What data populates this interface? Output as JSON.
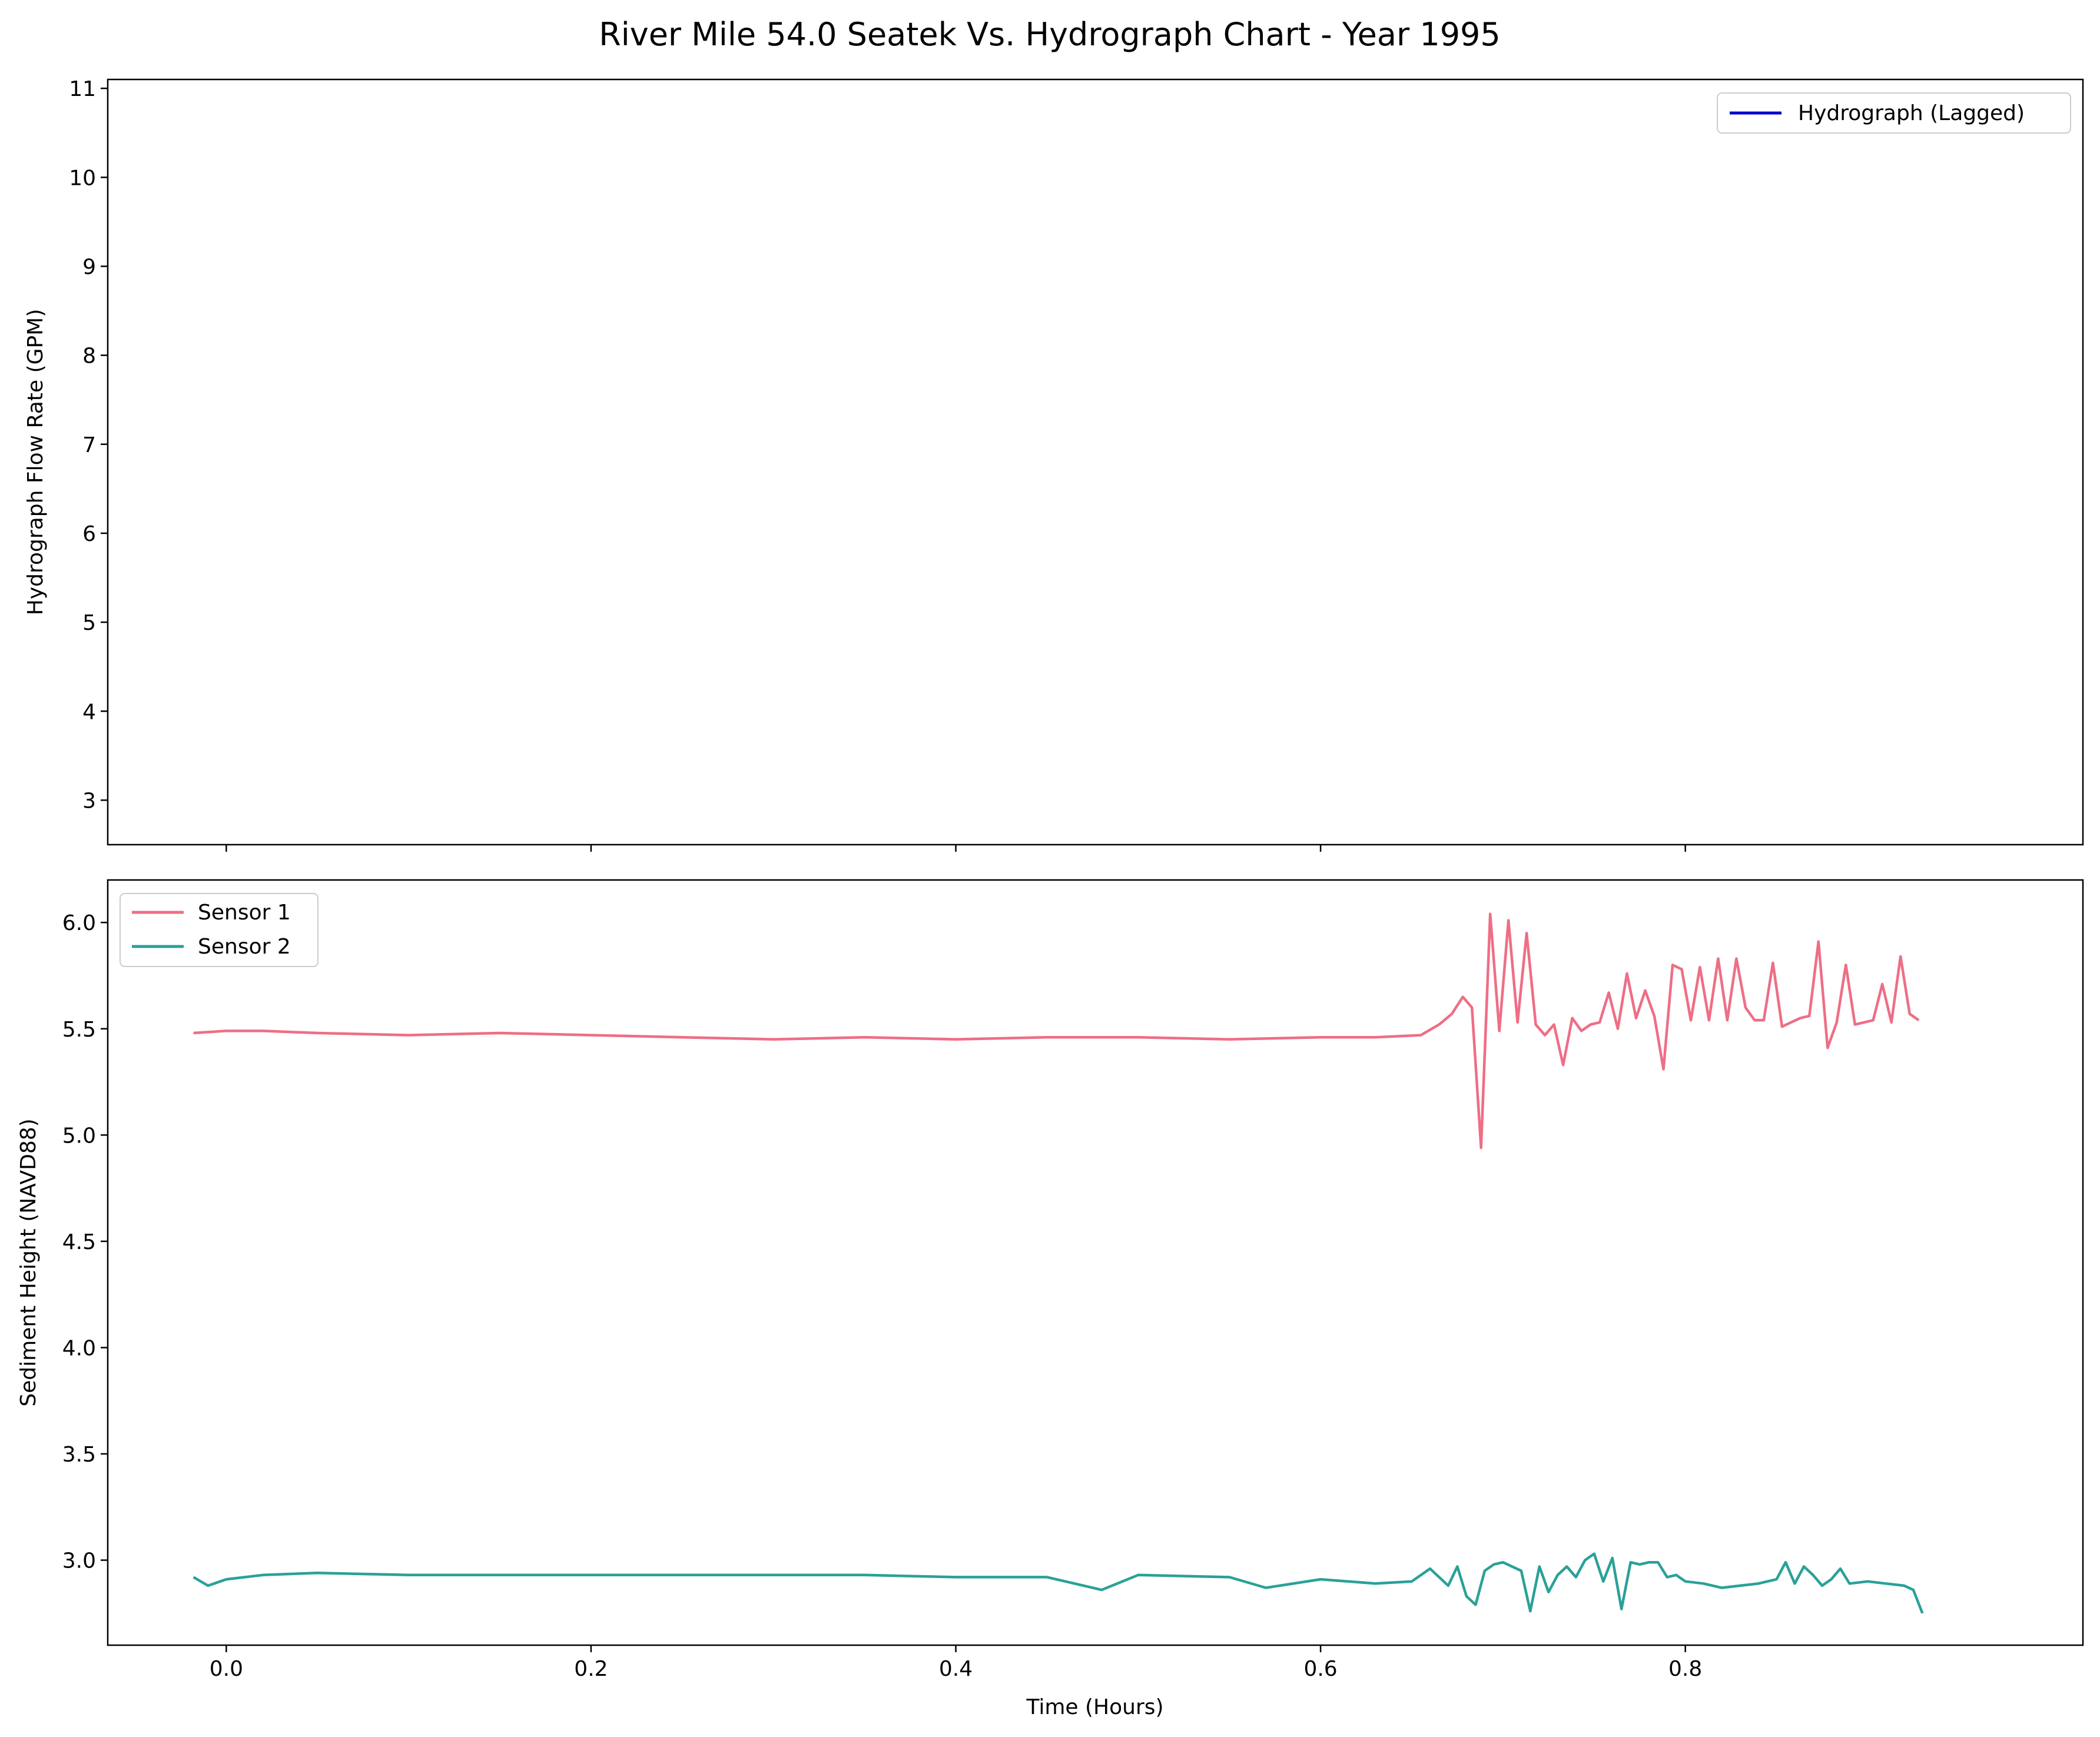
{
  "title": "River Mile 54.0 Seatek Vs. Hydrograph Chart - Year 1995",
  "chart_data": [
    {
      "type": "line",
      "panel": "top",
      "ylabel": "Hydrograph Flow Rate (GPM)",
      "xlabel": "",
      "ylim": [
        2.5,
        11.1
      ],
      "xlim": [
        -0.065,
        1.018
      ],
      "yticks": [
        3,
        4,
        5,
        6,
        7,
        8,
        9,
        10,
        11
      ],
      "xticks": [
        0.0,
        0.2,
        0.4,
        0.6,
        0.8
      ],
      "xtick_labels_visible": false,
      "grid": false,
      "legend_position": "top-right",
      "series": [
        {
          "name": "Hydrograph (Lagged)",
          "color": "#0000cc",
          "x": [],
          "y": []
        }
      ]
    },
    {
      "type": "line",
      "panel": "bottom",
      "xlabel": "Time (Hours)",
      "ylabel": "Sediment Height (NAVD88)",
      "ylim": [
        2.6,
        6.2
      ],
      "xlim": [
        -0.065,
        1.018
      ],
      "yticks": [
        3.0,
        3.5,
        4.0,
        4.5,
        5.0,
        5.5,
        6.0
      ],
      "xticks": [
        0.0,
        0.2,
        0.4,
        0.6,
        0.8
      ],
      "grid": false,
      "legend_position": "top-left",
      "series": [
        {
          "name": "Sensor 1",
          "color": "#ee6e85",
          "x": [
            -0.018,
            0.0,
            0.02,
            0.05,
            0.1,
            0.15,
            0.2,
            0.25,
            0.3,
            0.35,
            0.4,
            0.45,
            0.5,
            0.55,
            0.6,
            0.63,
            0.655,
            0.665,
            0.672,
            0.678,
            0.683,
            0.688,
            0.693,
            0.698,
            0.703,
            0.708,
            0.713,
            0.718,
            0.723,
            0.728,
            0.733,
            0.738,
            0.743,
            0.748,
            0.753,
            0.758,
            0.763,
            0.768,
            0.773,
            0.778,
            0.783,
            0.788,
            0.793,
            0.798,
            0.803,
            0.808,
            0.813,
            0.818,
            0.823,
            0.828,
            0.833,
            0.838,
            0.843,
            0.848,
            0.853,
            0.858,
            0.863,
            0.868,
            0.873,
            0.878,
            0.883,
            0.888,
            0.893,
            0.898,
            0.903,
            0.908,
            0.913,
            0.918,
            0.923,
            0.928
          ],
          "y": [
            5.48,
            5.49,
            5.49,
            5.48,
            5.47,
            5.48,
            5.47,
            5.46,
            5.45,
            5.46,
            5.45,
            5.46,
            5.46,
            5.45,
            5.46,
            5.46,
            5.47,
            5.52,
            5.57,
            5.65,
            5.6,
            4.94,
            6.04,
            5.49,
            6.01,
            5.53,
            5.95,
            5.52,
            5.47,
            5.52,
            5.33,
            5.55,
            5.49,
            5.52,
            5.53,
            5.67,
            5.5,
            5.76,
            5.55,
            5.68,
            5.56,
            5.31,
            5.8,
            5.78,
            5.54,
            5.79,
            5.54,
            5.83,
            5.54,
            5.83,
            5.6,
            5.54,
            5.54,
            5.81,
            5.51,
            5.53,
            5.55,
            5.56,
            5.91,
            5.41,
            5.53,
            5.8,
            5.52,
            5.53,
            5.54,
            5.71,
            5.53,
            5.84,
            5.57,
            5.54
          ]
        },
        {
          "name": "Sensor 2",
          "color": "#2aa198",
          "x": [
            -0.018,
            -0.01,
            0.0,
            0.02,
            0.05,
            0.1,
            0.15,
            0.2,
            0.25,
            0.3,
            0.35,
            0.4,
            0.45,
            0.48,
            0.5,
            0.55,
            0.57,
            0.6,
            0.63,
            0.65,
            0.66,
            0.67,
            0.675,
            0.68,
            0.685,
            0.69,
            0.695,
            0.7,
            0.705,
            0.71,
            0.715,
            0.72,
            0.725,
            0.73,
            0.735,
            0.74,
            0.745,
            0.75,
            0.755,
            0.76,
            0.765,
            0.77,
            0.775,
            0.78,
            0.785,
            0.79,
            0.795,
            0.8,
            0.81,
            0.82,
            0.83,
            0.84,
            0.85,
            0.855,
            0.86,
            0.865,
            0.87,
            0.875,
            0.88,
            0.885,
            0.89,
            0.9,
            0.91,
            0.92,
            0.925,
            0.93
          ],
          "y": [
            2.92,
            2.88,
            2.91,
            2.93,
            2.94,
            2.93,
            2.93,
            2.93,
            2.93,
            2.93,
            2.93,
            2.92,
            2.92,
            2.86,
            2.93,
            2.92,
            2.87,
            2.91,
            2.89,
            2.9,
            2.96,
            2.88,
            2.97,
            2.83,
            2.79,
            2.95,
            2.98,
            2.99,
            2.97,
            2.95,
            2.76,
            2.97,
            2.85,
            2.93,
            2.97,
            2.92,
            3.0,
            3.03,
            2.9,
            3.01,
            2.77,
            2.99,
            2.98,
            2.99,
            2.99,
            2.92,
            2.93,
            2.9,
            2.89,
            2.87,
            2.88,
            2.89,
            2.91,
            2.99,
            2.89,
            2.97,
            2.93,
            2.88,
            2.91,
            2.96,
            2.89,
            2.9,
            2.89,
            2.88,
            2.86,
            2.75
          ]
        }
      ]
    }
  ]
}
